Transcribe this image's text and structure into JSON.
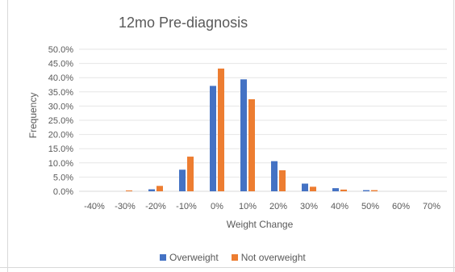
{
  "chart_data": {
    "type": "bar",
    "title": "12mo Pre-diagnosis",
    "xlabel": "Weight Change",
    "ylabel": "Frequency",
    "categories": [
      "-40%",
      "-30%",
      "-20%",
      "-10%",
      "0%",
      "10%",
      "20%",
      "30%",
      "40%",
      "50%",
      "60%",
      "70%"
    ],
    "yticks": [
      "0.0%",
      "5.0%",
      "10.0%",
      "15.0%",
      "20.0%",
      "25.0%",
      "30.0%",
      "35.0%",
      "40.0%",
      "45.0%",
      "50.0%"
    ],
    "ylim": [
      0,
      50
    ],
    "grid": true,
    "legend_position": "bottom",
    "series": [
      {
        "name": "Overweight",
        "color": "#4472c4",
        "values": [
          0,
          0,
          0.7,
          7.6,
          37.1,
          39.4,
          10.6,
          2.7,
          1.1,
          0.4,
          0,
          0
        ]
      },
      {
        "name": "Not overweight",
        "color": "#ed7d31",
        "values": [
          0,
          0.3,
          1.9,
          12.2,
          43.2,
          32.4,
          7.4,
          1.6,
          0.6,
          0.4,
          0,
          0
        ]
      }
    ]
  }
}
